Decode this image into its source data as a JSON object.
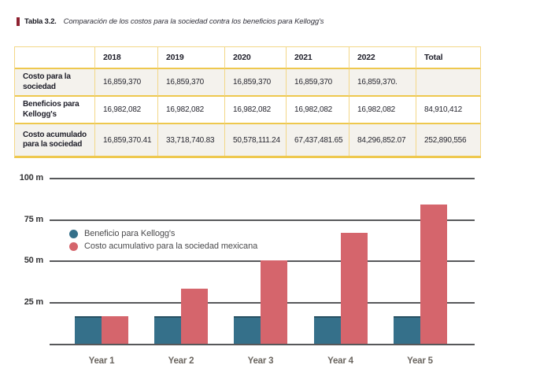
{
  "caption": {
    "label": "Tabla 3.2.",
    "text": "Comparación de los costos para la sociedad contra los beneficios para Kellogg's"
  },
  "table": {
    "headers": [
      "",
      "2018",
      "2019",
      "2020",
      "2021",
      "2022",
      "Total"
    ],
    "rows": [
      {
        "label": "Costo para la sociedad",
        "values": [
          "16,859,370",
          "16,859,370",
          "16,859,370",
          "16,859,370",
          "16,859,370.",
          ""
        ]
      },
      {
        "label": "Beneficios para Kellogg's",
        "values": [
          "16,982,082",
          "16,982,082",
          "16,982,082",
          "16,982,082",
          "16,982,082",
          "84,910,412"
        ]
      },
      {
        "label": "Costo acumulado para la sociedad",
        "values": [
          "16,859,370.41",
          "33,718,740.83",
          "50,578,111.24",
          "67,437,481.65",
          "84,296,852.07",
          "252,890,556"
        ]
      }
    ]
  },
  "chart_data": {
    "type": "bar",
    "categories": [
      "Year 1",
      "Year 2",
      "Year 3",
      "Year 4",
      "Year 5"
    ],
    "series": [
      {
        "name": "Beneficio para Kellogg's",
        "color": "#35708a",
        "values": [
          16.98,
          16.98,
          16.98,
          16.98,
          16.98
        ]
      },
      {
        "name": "Costo acumulativo para la sociedad mexicana",
        "color": "#d5656c",
        "values": [
          16.86,
          33.72,
          50.58,
          67.44,
          84.3
        ]
      }
    ],
    "yticks": [
      {
        "value": 100,
        "label": "100 m"
      },
      {
        "value": 75,
        "label": "75 m"
      },
      {
        "value": 50,
        "label": "50 m"
      },
      {
        "value": 25,
        "label": "25 m"
      }
    ],
    "ylim": [
      0,
      107
    ],
    "grid": true,
    "legend_position": "inside-upper-left"
  }
}
